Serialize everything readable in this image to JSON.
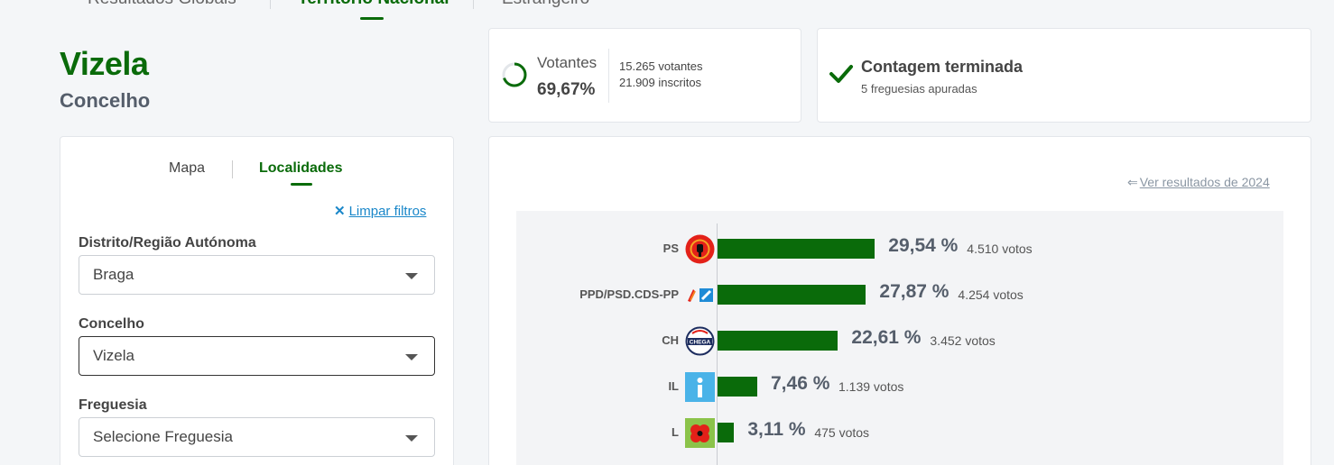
{
  "nav": {
    "tabs": [
      {
        "label": "Resultados Globais"
      },
      {
        "label": "Território Nacional"
      },
      {
        "label": "Estrangeiro"
      }
    ]
  },
  "header": {
    "title": "Vizela",
    "subtitle": "Concelho"
  },
  "turnout": {
    "label": "Votantes",
    "percent": "69,67%",
    "percent_value": 0.6967,
    "voters": "15.265 votantes",
    "registered": "21.909 inscritos"
  },
  "count": {
    "status": "Contagem terminada",
    "detail": "5 freguesias apuradas"
  },
  "filters": {
    "tabs": [
      "Mapa",
      "Localidades"
    ],
    "clear_label": "Limpar filtros",
    "district": {
      "label": "Distrito/Região Autónoma",
      "value": "Braga"
    },
    "municipality": {
      "label": "Concelho",
      "value": "Vizela"
    },
    "parish": {
      "label": "Freguesia",
      "value": "Selecione Freguesia"
    }
  },
  "results": {
    "back_link": "Ver resultados de 2024",
    "parties": [
      {
        "name": "PS",
        "percent": "29,54 %",
        "votes": "4.510 votos",
        "value": 29.54
      },
      {
        "name": "PPD/PSD.CDS-PP",
        "percent": "27,87 %",
        "votes": "4.254 votos",
        "value": 27.87
      },
      {
        "name": "CH",
        "percent": "22,61 %",
        "votes": "3.452 votos",
        "value": 22.61
      },
      {
        "name": "IL",
        "percent": "7,46 %",
        "votes": "1.139 votos",
        "value": 7.46
      },
      {
        "name": "L",
        "percent": "3,11 %",
        "votes": "475 votos",
        "value": 3.11
      }
    ],
    "bar_color": "#0a6b0a",
    "logo_ch_text": "CHEGA"
  },
  "colors": {
    "accent": "#0a6b0a",
    "link": "#1a87c9"
  }
}
